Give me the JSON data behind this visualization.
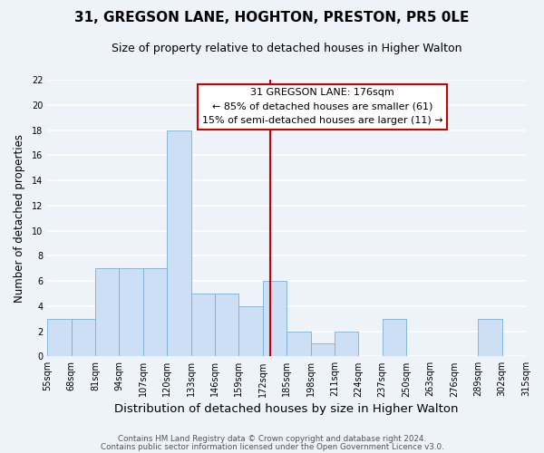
{
  "title": "31, GREGSON LANE, HOGHTON, PRESTON, PR5 0LE",
  "subtitle": "Size of property relative to detached houses in Higher Walton",
  "xlabel": "Distribution of detached houses by size in Higher Walton",
  "ylabel": "Number of detached properties",
  "bin_edges": [
    55,
    68,
    81,
    94,
    107,
    120,
    133,
    146,
    159,
    172,
    185,
    198,
    211,
    224,
    237,
    250,
    263,
    276,
    289,
    302,
    315
  ],
  "counts": [
    3,
    3,
    7,
    7,
    7,
    18,
    5,
    5,
    4,
    6,
    2,
    1,
    2,
    0,
    3,
    0,
    0,
    0,
    3,
    0
  ],
  "bar_color": "#ccdff5",
  "bar_edgecolor": "#7bafd4",
  "vline_x": 176,
  "vline_color": "#cc0000",
  "ylim": [
    0,
    22
  ],
  "yticks": [
    0,
    2,
    4,
    6,
    8,
    10,
    12,
    14,
    16,
    18,
    20,
    22
  ],
  "annotation_title": "31 GREGSON LANE: 176sqm",
  "annotation_line1": "← 85% of detached houses are smaller (61)",
  "annotation_line2": "15% of semi-detached houses are larger (11) →",
  "footer_line1": "Contains HM Land Registry data © Crown copyright and database right 2024.",
  "footer_line2": "Contains public sector information licensed under the Open Government Licence v3.0.",
  "background_color": "#eef2f9",
  "grid_color": "#ffffff",
  "title_fontsize": 11,
  "subtitle_fontsize": 9,
  "xlabel_fontsize": 9.5,
  "ylabel_fontsize": 8.5,
  "tick_fontsize": 7,
  "tick_labels": [
    "55sqm",
    "68sqm",
    "81sqm",
    "94sqm",
    "107sqm",
    "120sqm",
    "133sqm",
    "146sqm",
    "159sqm",
    "172sqm",
    "185sqm",
    "198sqm",
    "211sqm",
    "224sqm",
    "237sqm",
    "250sqm",
    "263sqm",
    "276sqm",
    "289sqm",
    "302sqm",
    "315sqm"
  ]
}
